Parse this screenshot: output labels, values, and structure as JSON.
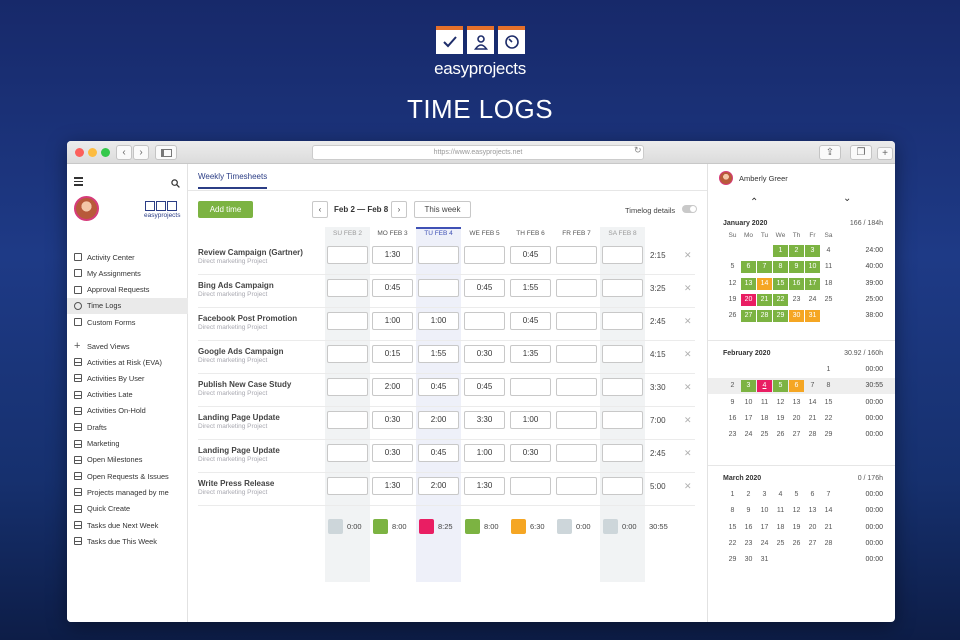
{
  "hero": {
    "brand": "easyprojects",
    "title": "TIME LOGS"
  },
  "browser": {
    "url": "https://www.easyprojects.net"
  },
  "sidebar": {
    "logo_text": "easyprojects",
    "items": [
      {
        "label": "Activity Center",
        "icon": "activity-icon",
        "active": false
      },
      {
        "label": "My Assignments",
        "icon": "checkbox-icon",
        "active": false
      },
      {
        "label": "Approval Requests",
        "icon": "approval-icon",
        "active": false
      },
      {
        "label": "Time Logs",
        "icon": "clock-icon",
        "active": true
      },
      {
        "label": "Custom Forms",
        "icon": "forms-icon",
        "active": false
      }
    ],
    "saved_views_label": "Saved Views",
    "views": [
      "Activities at Risk (EVA)",
      "Activities By User",
      "Activities Late",
      "Activities On-Hold",
      "Drafts",
      "Marketing",
      "Open Milestones",
      "Open Requests & Issues",
      "Projects managed by me",
      "Quick Create",
      "Tasks due Next Week",
      "Tasks due This Week"
    ]
  },
  "main": {
    "tab": "Weekly Timesheets",
    "add_time": "Add time",
    "week_range": "Feb 2 — Feb 8",
    "this_week": "This week",
    "timelog_details": "Timelog details",
    "days": [
      "SU FEB 2",
      "MO FEB 3",
      "TU FEB 4",
      "WE FEB 5",
      "TH FEB 6",
      "FR FEB 7",
      "SA FEB 8"
    ],
    "rows": [
      {
        "name": "Review Campaign (Gartner)",
        "project": "Direct marketing Project",
        "values": [
          "",
          "1:30",
          "",
          "",
          "0:45",
          "",
          ""
        ],
        "total": "2:15"
      },
      {
        "name": "Bing Ads Campaign",
        "project": "Direct marketing Project",
        "values": [
          "",
          "0:45",
          "",
          "0:45",
          "1:55",
          "",
          ""
        ],
        "total": "3:25"
      },
      {
        "name": "Facebook Post Promotion",
        "project": "Direct marketing Project",
        "values": [
          "",
          "1:00",
          "1:00",
          "",
          "0:45",
          "",
          ""
        ],
        "total": "2:45"
      },
      {
        "name": "Google Ads Campaign",
        "project": "Direct marketing Project",
        "values": [
          "",
          "0:15",
          "1:55",
          "0:30",
          "1:35",
          "",
          ""
        ],
        "total": "4:15"
      },
      {
        "name": "Publish New Case Study",
        "project": "Direct marketing Project",
        "values": [
          "",
          "2:00",
          "0:45",
          "0:45",
          "",
          "",
          ""
        ],
        "total": "3:30"
      },
      {
        "name": "Landing Page Update",
        "project": "Direct marketing Project",
        "values": [
          "",
          "0:30",
          "2:00",
          "3:30",
          "1:00",
          "",
          ""
        ],
        "total": "7:00"
      },
      {
        "name": "Landing Page Update",
        "project": "Direct marketing Project",
        "values": [
          "",
          "0:30",
          "0:45",
          "1:00",
          "0:30",
          "",
          ""
        ],
        "total": "2:45"
      },
      {
        "name": "Write Press Release",
        "project": "Direct marketing Project",
        "values": [
          "",
          "1:30",
          "2:00",
          "1:30",
          "",
          "",
          ""
        ],
        "total": "5:00"
      }
    ],
    "summary": [
      {
        "value": "0:00",
        "color": "#cdd6da"
      },
      {
        "value": "8:00",
        "color": "#7cb342"
      },
      {
        "value": "8:25",
        "color": "#e91e63"
      },
      {
        "value": "8:00",
        "color": "#7cb342"
      },
      {
        "value": "6:30",
        "color": "#f5a623"
      },
      {
        "value": "0:00",
        "color": "#cdd6da"
      },
      {
        "value": "0:00",
        "color": "#cdd6da"
      }
    ],
    "summary_total": "30:55"
  },
  "right": {
    "user": "Amberly Greer",
    "dow": [
      "Su",
      "Mo",
      "Tu",
      "We",
      "Th",
      "Fr",
      "Sa"
    ],
    "months": [
      {
        "title": "January 2020",
        "total": "166 / 184h",
        "weeks": [
          {
            "days": [
              "",
              "",
              "",
              "1",
              "2",
              "3",
              "4"
            ],
            "hours": "24:00"
          },
          {
            "days": [
              "5",
              "6",
              "7",
              "8",
              "9",
              "10",
              "11"
            ],
            "hours": "40:00"
          },
          {
            "days": [
              "12",
              "13",
              "14",
              "15",
              "16",
              "17",
              "18"
            ],
            "hours": "39:00"
          },
          {
            "days": [
              "19",
              "20",
              "21",
              "22",
              "23",
              "24",
              "25"
            ],
            "hours": "25:00"
          },
          {
            "days": [
              "26",
              "27",
              "28",
              "29",
              "30",
              "31",
              ""
            ],
            "hours": "38:00"
          }
        ],
        "marks": {
          "1": "#7cb342",
          "2": "#7cb342",
          "3": "#7cb342",
          "6": "#7cb342",
          "7": "#7cb342",
          "8": "#7cb342",
          "9": "#7cb342",
          "10": "#7cb342",
          "13": "#7cb342",
          "14": "#f5a623",
          "15": "#7cb342",
          "16": "#7cb342",
          "17": "#7cb342",
          "20": "#e91e63",
          "21": "#7cb342",
          "22": "#7cb342",
          "27": "#7cb342",
          "28": "#7cb342",
          "29": "#7cb342",
          "30": "#f5a623",
          "31": "#f5a623"
        }
      },
      {
        "title": "February 2020",
        "total": "30.92 / 160h",
        "weeks": [
          {
            "days": [
              "",
              "",
              "",
              "",
              "",
              "",
              "1"
            ],
            "hours": "00:00"
          },
          {
            "days": [
              "2",
              "3",
              "4",
              "5",
              "6",
              "7",
              "8"
            ],
            "hours": "30:55"
          },
          {
            "days": [
              "9",
              "10",
              "11",
              "12",
              "13",
              "14",
              "15"
            ],
            "hours": "00:00"
          },
          {
            "days": [
              "16",
              "17",
              "18",
              "19",
              "20",
              "21",
              "22"
            ],
            "hours": "00:00"
          },
          {
            "days": [
              "23",
              "24",
              "25",
              "26",
              "27",
              "28",
              "29"
            ],
            "hours": "00:00"
          }
        ],
        "marks": {
          "3": "#7cb342",
          "4": "#e91e63",
          "5": "#7cb342",
          "6": "#f5a623"
        }
      },
      {
        "title": "March 2020",
        "total": "0 / 176h",
        "weeks": [
          {
            "days": [
              "1",
              "2",
              "3",
              "4",
              "5",
              "6",
              "7"
            ],
            "hours": "00:00"
          },
          {
            "days": [
              "8",
              "9",
              "10",
              "11",
              "12",
              "13",
              "14"
            ],
            "hours": "00:00"
          },
          {
            "days": [
              "15",
              "16",
              "17",
              "18",
              "19",
              "20",
              "21"
            ],
            "hours": "00:00"
          },
          {
            "days": [
              "22",
              "23",
              "24",
              "25",
              "26",
              "27",
              "28"
            ],
            "hours": "00:00"
          },
          {
            "days": [
              "29",
              "30",
              "31",
              "",
              "",
              "",
              ""
            ],
            "hours": "00:00"
          }
        ],
        "marks": {}
      }
    ]
  }
}
